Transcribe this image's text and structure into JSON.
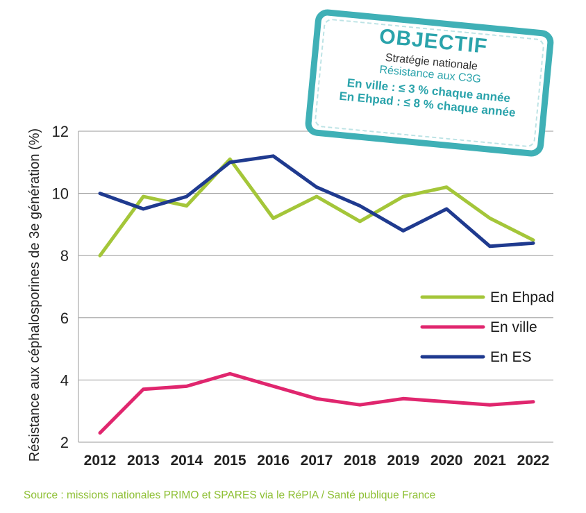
{
  "chart_data": {
    "type": "line",
    "title": "",
    "xlabel": "",
    "ylabel": "Résistance aux céphalosporines de 3e génération (%)",
    "ylim": [
      2,
      12
    ],
    "yticks": [
      2,
      4,
      6,
      8,
      10,
      12
    ],
    "x": [
      "2012",
      "2013",
      "2014",
      "2015",
      "2016",
      "2017",
      "2018",
      "2019",
      "2020",
      "2021",
      "2022"
    ],
    "grid": "horizontal",
    "legend_position": "right",
    "series": [
      {
        "name": "En Ehpad",
        "color": "#a4c639",
        "values": [
          8.0,
          9.9,
          9.6,
          11.1,
          9.2,
          9.9,
          9.1,
          9.9,
          10.2,
          9.2,
          8.5
        ]
      },
      {
        "name": "En ville",
        "color": "#e0266e",
        "values": [
          2.3,
          3.7,
          3.8,
          4.2,
          3.8,
          3.4,
          3.2,
          3.4,
          3.3,
          3.2,
          3.3
        ]
      },
      {
        "name": "En ES",
        "color": "#1f3a8f",
        "values": [
          10.0,
          9.5,
          9.9,
          11.0,
          11.2,
          10.2,
          9.6,
          8.8,
          9.5,
          8.3,
          8.4
        ]
      }
    ]
  },
  "objective": {
    "title": "OBJECTIF",
    "line1": "Stratégie nationale",
    "line2": "Résistance aux C3G",
    "line3": "En ville : ≤ 3 % chaque année",
    "line4": "En Ehpad : ≤ 8 % chaque année",
    "color": "#2aa3ab"
  },
  "source": "Source : missions nationales PRIMO et SPARES via le RéPIA / Santé publique France"
}
